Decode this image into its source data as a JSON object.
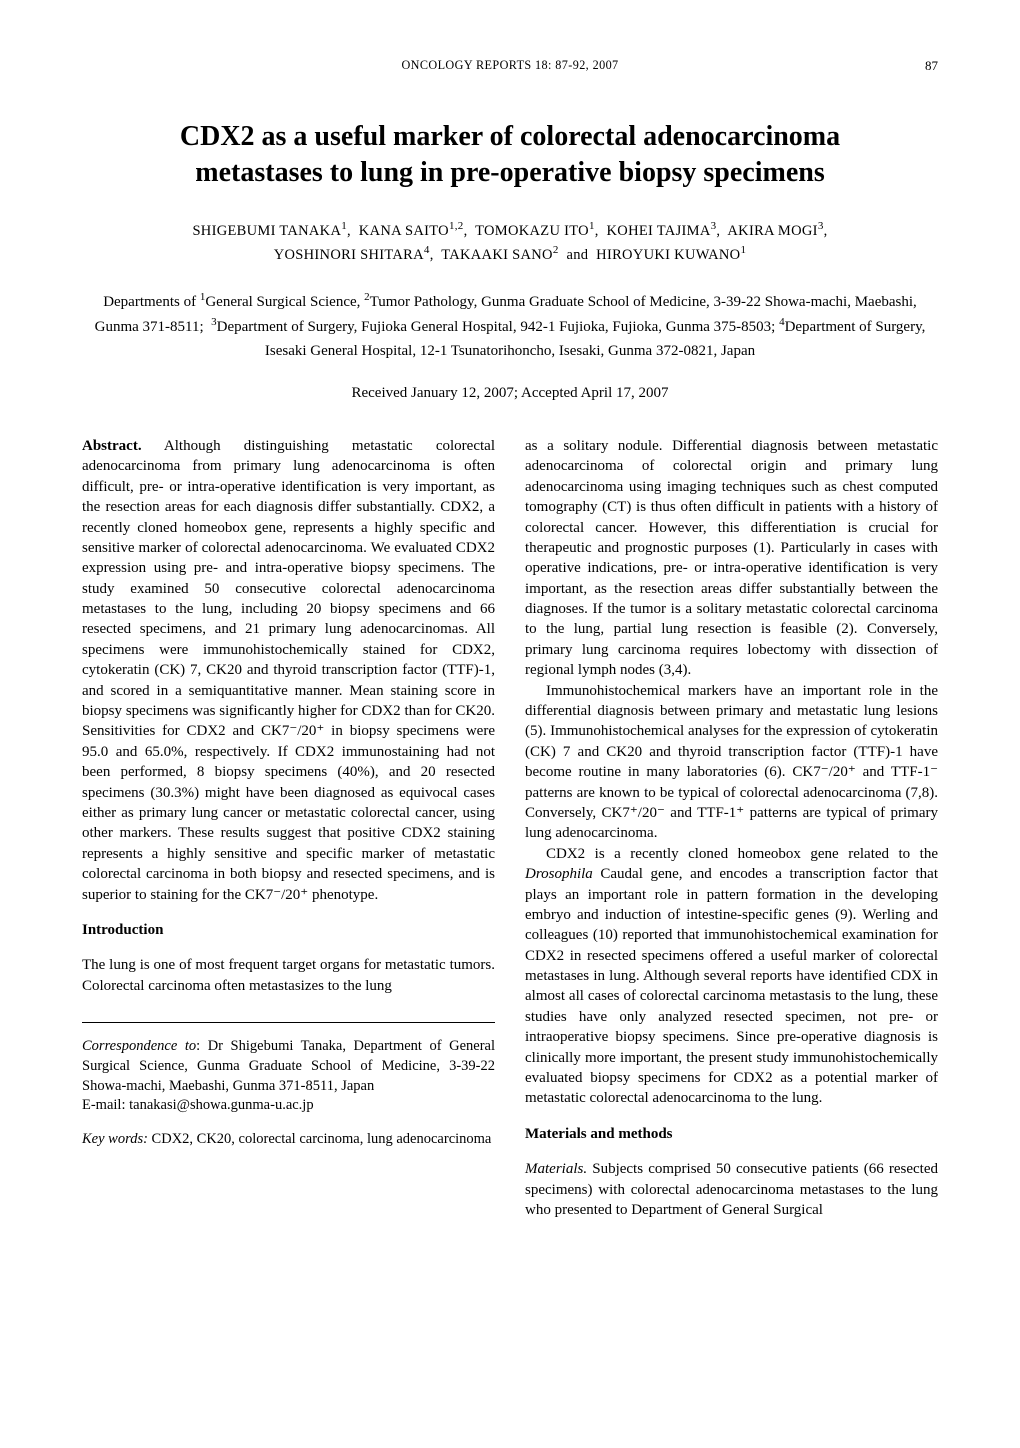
{
  "running_head": "ONCOLOGY REPORTS  18:  87-92,  2007",
  "page_number": "87",
  "title_line1": "CDX2 as a useful marker of colorectal adenocarcinoma",
  "title_line2": "metastases to lung in pre-operative biopsy specimens",
  "authors_html": "SHIGEBUMI TANAKA<sup>1</sup>,&nbsp; KANA SAITO<sup>1,2</sup>,&nbsp; TOMOKAZU ITO<sup>1</sup>,&nbsp; KOHEI TAJIMA<sup>3</sup>,&nbsp; AKIRA MOGI<sup>3</sup>,<br>YOSHINORI SHITARA<sup>4</sup>,&nbsp; TAKAAKI SANO<sup>2</sup>&nbsp; and&nbsp; HIROYUKI KUWANO<sup>1</sup>",
  "affiliations_html": "Departments of <sup>1</sup>General Surgical Science, <sup>2</sup>Tumor Pathology, Gunma Graduate School of Medicine, 3-39-22 Showa-machi, Maebashi, Gunma 371-8511; &nbsp;<sup>3</sup>Department of Surgery, Fujioka General Hospital, 942-1 Fujioka, Fujioka, Gunma 375-8503; <sup>4</sup>Department of Surgery, Isesaki General Hospital, 12-1 Tsunatorihoncho, Isesaki, Gunma 372-0821, Japan",
  "received": "Received January 12, 2007;  Accepted April 17, 2007",
  "abstract_label": "Abstract.",
  "abstract_body": " Although distinguishing metastatic colorectal adenocarcinoma from primary lung adenocarcinoma is often difficult, pre- or intra-operative identification is very important, as the resection areas for each diagnosis differ substantially. CDX2, a recently cloned homeobox gene, represents a highly specific and sensitive marker of colorectal adenocarcinoma. We evaluated CDX2 expression using pre- and intra-operative biopsy specimens. The study examined 50 consecutive colorectal adenocarcinoma metastases to the lung, including 20 biopsy specimens and 66 resected specimens, and 21 primary lung adenocarcinomas. All specimens were immunohistochemically stained for CDX2, cytokeratin (CK) 7, CK20 and thyroid transcription factor (TTF)-1, and scored in a semiquantitative manner. Mean staining score in biopsy specimens was significantly higher for CDX2 than for CK20. Sensitivities for CDX2 and CK7⁻/20⁺ in biopsy specimens were 95.0 and 65.0%, respectively. If CDX2 immunostaining had not been performed, 8 biopsy specimens (40%), and 20 resected specimens (30.3%) might have been diagnosed as equivocal cases either as primary lung cancer or metastatic colorectal cancer, using other markers. These results suggest that positive CDX2 staining represents a highly sensitive and specific marker of metastatic colorectal carcinoma in both biopsy and resected specimens, and is superior to staining for the CK7⁻/20⁺ phenotype.",
  "intro_heading": "Introduction",
  "intro_para1": "The lung is one of most frequent target organs for metastatic tumors. Colorectal carcinoma often metastasizes to the lung",
  "right_para1": "as a solitary nodule. Differential diagnosis between metastatic adenocarcinoma of colorectal origin and primary lung adenocarcinoma using imaging techniques such as chest computed tomography (CT) is thus often difficult in patients with a history of colorectal cancer. However, this differentiation is crucial for therapeutic and prognostic purposes (1). Particularly in cases with operative indications, pre- or intra-operative identification is very important, as the resection areas differ substantially between the diagnoses. If the tumor is a solitary metastatic colorectal carcinoma to the lung, partial lung resection is feasible (2). Conversely, primary lung carcinoma requires lobectomy with dissection of regional lymph nodes (3,4).",
  "right_para2": "Immunohistochemical markers have an important role in the differential diagnosis between primary and metastatic lung lesions (5). Immunohistochemical analyses for the expression of cytokeratin (CK) 7 and CK20 and thyroid transcription factor (TTF)-1 have become routine in many laboratories (6). CK7⁻/20⁺ and TTF-1⁻ patterns are known to be typical of colorectal adenocarcinoma (7,8). Conversely, CK7⁺/20⁻ and TTF-1⁺ patterns are typical of primary lung adenocarcinoma.",
  "right_para3_html": "CDX2 is a recently cloned homeobox gene related to the <span class=\"italic\">Drosophila</span> Caudal gene, and encodes a transcription factor that plays an important role in pattern formation in the developing embryo and induction of intestine-specific genes (9). Werling and colleagues (10) reported that immunohistochemical examination for CDX2 in resected specimens offered a useful marker of colorectal metastases in lung. Although several reports have identified CDX in almost all cases of colorectal carcinoma metastasis to the lung, these studies have only analyzed resected specimen, not pre- or intraoperative biopsy specimens. Since pre-operative diagnosis is clinically more important, the present study immunohistochemically evaluated biopsy specimens for CDX2 as a potential marker of metastatic colorectal adenocarcinoma to the lung.",
  "materials_heading": "Materials and methods",
  "materials_para_label": "Materials.",
  "materials_para_body": " Subjects comprised 50 consecutive patients (66 resected specimens) with colorectal adenocarcinoma metastases to the lung who presented to Department of General Surgical",
  "correspondence_label": "Correspondence to",
  "correspondence_body": ": Dr Shigebumi Tanaka, Department of General Surgical Science, Gunma Graduate School of Medicine, 3-39-22 Showa-machi, Maebashi, Gunma 371-8511, Japan",
  "correspondence_email": "E-mail: tanakasi@showa.gunma-u.ac.jp",
  "keywords_label": "Key words:",
  "keywords_body": " CDX2, CK20, colorectal carcinoma, lung adenocarcinoma"
}
